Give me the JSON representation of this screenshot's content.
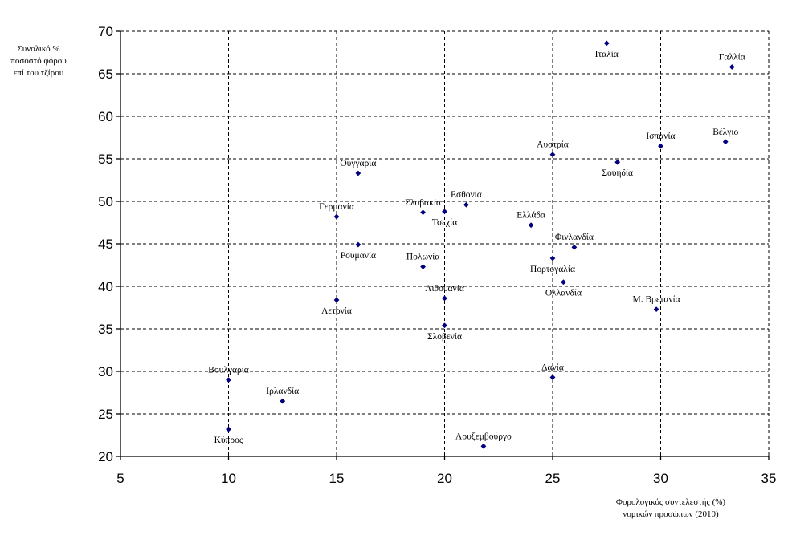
{
  "chart_data": {
    "type": "scatter",
    "title": "",
    "ylabel_lines": [
      "Συνολικό %",
      "ποσοστό φόρου",
      "επί του τζίρου"
    ],
    "xlabel_lines": [
      "Φορολογικός συντελεστής (%)",
      "νομικών προσώπων (2010)"
    ],
    "xlim": [
      5,
      35
    ],
    "ylim": [
      20,
      70
    ],
    "xticks": [
      5,
      10,
      15,
      20,
      25,
      30,
      35
    ],
    "yticks": [
      20,
      25,
      30,
      35,
      40,
      45,
      50,
      55,
      60,
      65,
      70
    ],
    "grid": true,
    "marker_color": "#00007f",
    "points": [
      {
        "label": "Ιταλία",
        "x": 27.5,
        "y": 68.6,
        "pos": "below"
      },
      {
        "label": "Γαλλία",
        "x": 33.3,
        "y": 65.8,
        "pos": "above"
      },
      {
        "label": "Ισπανία",
        "x": 30.0,
        "y": 56.5,
        "pos": "above"
      },
      {
        "label": "Βέλγιο",
        "x": 33.0,
        "y": 57.0,
        "pos": "above"
      },
      {
        "label": "Αυστρία",
        "x": 25.0,
        "y": 55.5,
        "pos": "above"
      },
      {
        "label": "Σουηδία",
        "x": 28.0,
        "y": 54.6,
        "pos": "below"
      },
      {
        "label": "Ουγγαρία",
        "x": 16.0,
        "y": 53.3,
        "pos": "above"
      },
      {
        "label": "Σλοβακία",
        "x": 19.0,
        "y": 48.7,
        "pos": "above"
      },
      {
        "label": "Εσθονία",
        "x": 21.0,
        "y": 49.6,
        "pos": "above"
      },
      {
        "label": "Τσεχία",
        "x": 20.0,
        "y": 48.8,
        "pos": "below"
      },
      {
        "label": "Γερμανία",
        "x": 15.0,
        "y": 48.2,
        "pos": "above"
      },
      {
        "label": "Ελλάδα",
        "x": 24.0,
        "y": 47.2,
        "pos": "above"
      },
      {
        "label": "Ρουμανία",
        "x": 16.0,
        "y": 44.9,
        "pos": "below"
      },
      {
        "label": "Φινλανδία",
        "x": 26.0,
        "y": 44.6,
        "pos": "above"
      },
      {
        "label": "Πολωνία",
        "x": 19.0,
        "y": 42.3,
        "pos": "above"
      },
      {
        "label": "Πορτογαλία",
        "x": 25.0,
        "y": 43.3,
        "pos": "below"
      },
      {
        "label": "Ολλανδία",
        "x": 25.5,
        "y": 40.5,
        "pos": "below"
      },
      {
        "label": "Λιθουανία",
        "x": 20.0,
        "y": 38.6,
        "pos": "above"
      },
      {
        "label": "Λετονία",
        "x": 15.0,
        "y": 38.4,
        "pos": "below"
      },
      {
        "label": "Μ. Βρετανία",
        "x": 29.8,
        "y": 37.3,
        "pos": "above"
      },
      {
        "label": "Σλοβενία",
        "x": 20.0,
        "y": 35.4,
        "pos": "below"
      },
      {
        "label": "Βουλγαρία",
        "x": 10.0,
        "y": 29.0,
        "pos": "above"
      },
      {
        "label": "Δανία",
        "x": 25.0,
        "y": 29.3,
        "pos": "above"
      },
      {
        "label": "Ιρλανδία",
        "x": 12.5,
        "y": 26.5,
        "pos": "above"
      },
      {
        "label": "Κύπρος",
        "x": 10.0,
        "y": 23.2,
        "pos": "below"
      },
      {
        "label": "Λουξεμβούργο",
        "x": 21.8,
        "y": 21.2,
        "pos": "above"
      }
    ]
  }
}
